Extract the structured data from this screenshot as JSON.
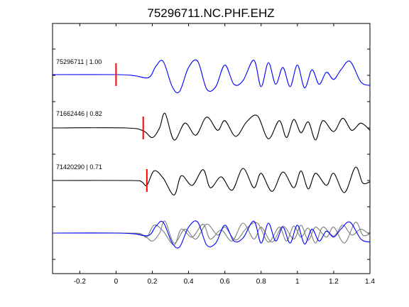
{
  "chart_data": {
    "type": "line",
    "title": "75296711.NC.PHF.EHZ",
    "xlabel": "",
    "ylabel": "",
    "xlim": [
      -0.35,
      1.4
    ],
    "xticks": [
      -0.2,
      0,
      0.2,
      0.4,
      0.6,
      0.8,
      1,
      1.2,
      1.4
    ],
    "xtick_labels": [
      "-0.2",
      "0",
      "0.2",
      "0.4",
      "0.6",
      "0.8",
      "1",
      "1.2",
      "1.4"
    ],
    "grid": false,
    "colors": {
      "reference": "#0000ff",
      "trace": "#000000",
      "overlay": "#7f7f7f",
      "pick": "#ff0000"
    },
    "traces": [
      {
        "label": "75296711 | 1.00",
        "color": "#0000ff",
        "pick_time": 0.0,
        "x": [
          -0.35,
          0.0,
          0.1,
          0.18,
          0.22,
          0.26,
          0.31,
          0.35,
          0.4,
          0.45,
          0.5,
          0.55,
          0.6,
          0.65,
          0.7,
          0.76,
          0.8,
          0.84,
          0.88,
          0.92,
          0.96,
          1.0,
          1.04,
          1.08,
          1.12,
          1.16,
          1.2,
          1.24,
          1.29,
          1.35,
          1.4
        ],
        "y": [
          0.0,
          0.0,
          -0.04,
          -0.12,
          0.35,
          0.55,
          -0.5,
          -0.7,
          0.3,
          0.56,
          -0.6,
          -0.5,
          0.4,
          -0.4,
          -0.25,
          0.6,
          -0.5,
          0.5,
          -0.4,
          0.3,
          -0.5,
          0.4,
          -0.55,
          0.2,
          -0.4,
          0.1,
          -0.2,
          0.2,
          0.55,
          -0.3,
          -0.45
        ]
      },
      {
        "label": "71662446 | 0.82",
        "color": "#000000",
        "pick_time": 0.15,
        "x": [
          -0.35,
          0.05,
          0.15,
          0.2,
          0.24,
          0.27,
          0.32,
          0.38,
          0.44,
          0.5,
          0.56,
          0.6,
          0.66,
          0.72,
          0.78,
          0.84,
          0.9,
          0.94,
          0.98,
          1.02,
          1.06,
          1.1,
          1.14,
          1.2,
          1.25,
          1.3,
          1.35,
          1.4
        ],
        "y": [
          0.0,
          0.0,
          -0.12,
          -0.4,
          0.0,
          0.6,
          -0.5,
          0.2,
          -0.3,
          0.45,
          -0.1,
          0.3,
          -0.35,
          0.25,
          0.5,
          -0.45,
          0.3,
          -0.4,
          0.35,
          -0.2,
          0.25,
          -0.5,
          0.3,
          -0.15,
          0.4,
          -0.1,
          0.2,
          -0.1
        ]
      },
      {
        "label": "71420290 | 0.71",
        "color": "#000000",
        "pick_time": 0.17,
        "x": [
          -0.35,
          0.08,
          0.14,
          0.17,
          0.21,
          0.26,
          0.32,
          0.36,
          0.42,
          0.48,
          0.52,
          0.58,
          0.64,
          0.7,
          0.76,
          0.8,
          0.86,
          0.92,
          0.98,
          1.02,
          1.06,
          1.1,
          1.16,
          1.2,
          1.26,
          1.32,
          1.36,
          1.4
        ],
        "y": [
          0.0,
          0.0,
          -0.05,
          -0.2,
          0.4,
          0.1,
          -0.6,
          0.2,
          -0.2,
          0.45,
          -0.3,
          0.15,
          -0.4,
          0.5,
          -0.3,
          0.3,
          -0.45,
          0.35,
          -0.3,
          0.4,
          -0.35,
          0.3,
          -0.2,
          0.3,
          -0.5,
          0.55,
          -0.1,
          -0.05
        ]
      }
    ]
  }
}
